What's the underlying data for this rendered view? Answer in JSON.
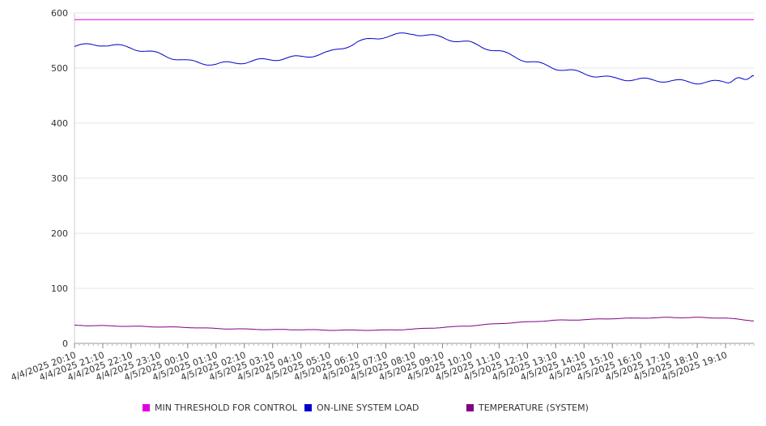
{
  "chart_data": {
    "type": "line",
    "title": "",
    "xlabel": "",
    "ylabel": "",
    "ylim": [
      0,
      600
    ],
    "yticks": [
      0,
      100,
      200,
      300,
      400,
      500,
      600
    ],
    "grid": true,
    "legend_position": "bottom",
    "xlim": [
      "4/4/2025 20:10",
      "4/5/2025 20:10"
    ],
    "x_tick_labels": [
      "4/4/2025 20:10",
      "4/4/2025 21:10",
      "4/4/2025 22:10",
      "4/4/2025 23:10",
      "4/5/2025 00:10",
      "4/5/2025 01:10",
      "4/5/2025 02:10",
      "4/5/2025 03:10",
      "4/5/2025 04:10",
      "4/5/2025 05:10",
      "4/5/2025 06:10",
      "4/5/2025 07:10",
      "4/5/2025 08:10",
      "4/5/2025 09:10",
      "4/5/2025 10:10",
      "4/5/2025 11:10",
      "4/5/2025 12:10",
      "4/5/2025 13:10",
      "4/5/2025 14:10",
      "4/5/2025 15:10",
      "4/5/2025 16:10",
      "4/5/2025 17:10",
      "4/5/2025 18:10",
      "4/5/2025 19:10"
    ],
    "series": [
      {
        "name": "MIN THRESHOLD FOR CONTROL",
        "color": "#e000e0",
        "x": [
          "4/4/2025 20:10",
          "4/5/2025 20:10"
        ],
        "values": [
          588,
          588
        ]
      },
      {
        "name": "ON-LINE SYSTEM LOAD",
        "color": "#0000cc",
        "x": [
          "4/4/2025 20:10",
          "4/4/2025 21:10",
          "4/4/2025 22:10",
          "4/4/2025 23:10",
          "4/5/2025 00:10",
          "4/5/2025 01:10",
          "4/5/2025 02:10",
          "4/5/2025 03:10",
          "4/5/2025 04:10",
          "4/5/2025 05:10",
          "4/5/2025 06:10",
          "4/5/2025 07:10",
          "4/5/2025 08:10",
          "4/5/2025 09:10",
          "4/5/2025 10:10",
          "4/5/2025 11:10",
          "4/5/2025 12:10",
          "4/5/2025 13:10",
          "4/5/2025 14:10",
          "4/5/2025 15:10",
          "4/5/2025 16:10",
          "4/5/2025 17:10",
          "4/5/2025 18:10",
          "4/5/2025 19:10",
          "4/5/2025 19:40",
          "4/5/2025 20:10"
        ],
        "values": [
          540,
          543,
          537,
          525,
          512,
          507,
          511,
          516,
          520,
          528,
          547,
          558,
          563,
          555,
          545,
          530,
          513,
          500,
          490,
          481,
          479,
          477,
          474,
          475,
          480,
          485
        ]
      },
      {
        "name": "TEMPERATURE (SYSTEM)",
        "color": "#800080",
        "x": [
          "4/4/2025 20:10",
          "4/4/2025 21:10",
          "4/4/2025 22:10",
          "4/4/2025 23:10",
          "4/5/2025 00:10",
          "4/5/2025 01:10",
          "4/5/2025 02:10",
          "4/5/2025 03:10",
          "4/5/2025 04:10",
          "4/5/2025 05:10",
          "4/5/2025 06:10",
          "4/5/2025 07:10",
          "4/5/2025 08:10",
          "4/5/2025 09:10",
          "4/5/2025 10:10",
          "4/5/2025 11:10",
          "4/5/2025 12:10",
          "4/5/2025 13:10",
          "4/5/2025 14:10",
          "4/5/2025 15:10",
          "4/5/2025 16:10",
          "4/5/2025 17:10",
          "4/5/2025 18:10",
          "4/5/2025 19:10",
          "4/5/2025 20:10"
        ],
        "values": [
          33,
          32,
          31,
          30,
          29,
          27,
          26,
          25,
          25,
          24,
          24,
          24,
          26,
          29,
          32,
          36,
          39,
          42,
          43,
          45,
          46,
          47,
          47,
          46,
          41
        ]
      }
    ]
  }
}
